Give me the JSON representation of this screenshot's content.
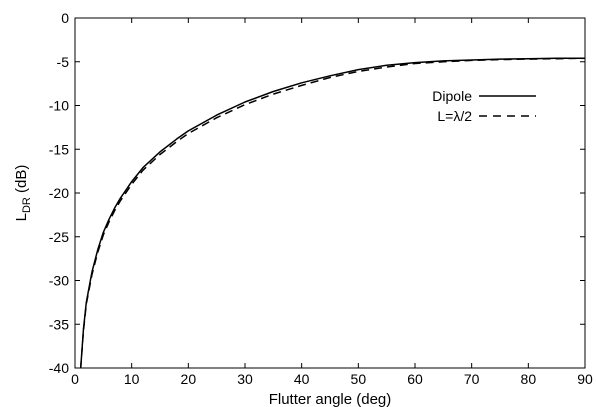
{
  "chart_data": {
    "type": "line",
    "xlabel": "Flutter angle (deg)",
    "ylabel": "L",
    "ylabel_sub": "DR",
    "ylabel_unit": " (dB)",
    "xlim": [
      0,
      90
    ],
    "ylim": [
      -40,
      0
    ],
    "xticks": [
      0,
      10,
      20,
      30,
      40,
      50,
      60,
      70,
      80,
      90
    ],
    "yticks": [
      0,
      -5,
      -10,
      -15,
      -20,
      -25,
      -30,
      -35,
      -40
    ],
    "grid": false,
    "legend_position": "top-right",
    "series": [
      {
        "name": "Dipole",
        "style": "solid",
        "x": [
          1,
          1.5,
          2,
          3,
          4,
          5,
          6,
          7,
          8,
          10,
          12,
          15,
          18,
          20,
          25,
          30,
          35,
          40,
          45,
          50,
          55,
          60,
          65,
          70,
          75,
          80,
          85,
          90
        ],
        "y": [
          -40,
          -35.5,
          -32.5,
          -29,
          -26.5,
          -24.5,
          -23,
          -21.7,
          -20.6,
          -18.7,
          -17.1,
          -15.3,
          -13.8,
          -12.9,
          -11.1,
          -9.6,
          -8.4,
          -7.4,
          -6.6,
          -5.9,
          -5.4,
          -5.1,
          -4.9,
          -4.8,
          -4.7,
          -4.65,
          -4.6,
          -4.6
        ]
      },
      {
        "name": "L=λ/2",
        "style": "dashed",
        "x": [
          1,
          1.5,
          2,
          3,
          4,
          5,
          6,
          7,
          8,
          10,
          12,
          15,
          18,
          20,
          25,
          30,
          35,
          40,
          45,
          50,
          55,
          60,
          65,
          70,
          75,
          80,
          85,
          90
        ],
        "y": [
          -40,
          -35.7,
          -32.7,
          -29.3,
          -26.8,
          -24.8,
          -23.3,
          -22,
          -20.9,
          -19,
          -17.4,
          -15.6,
          -14.1,
          -13.2,
          -11.4,
          -9.9,
          -8.7,
          -7.7,
          -6.8,
          -6.1,
          -5.6,
          -5.2,
          -5,
          -4.85,
          -4.75,
          -4.7,
          -4.65,
          -4.6
        ]
      }
    ]
  }
}
